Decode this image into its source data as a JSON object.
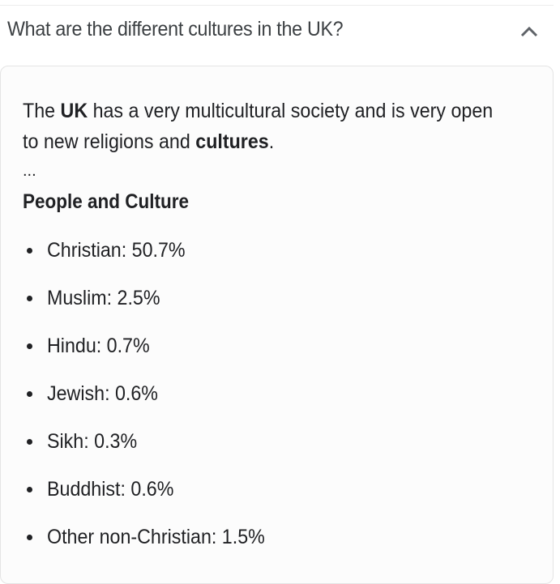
{
  "question": "What are the different cultures in the UK?",
  "expand_icon": "chevron-up-icon",
  "answer": {
    "intro_parts": [
      {
        "text": "The ",
        "bold": false
      },
      {
        "text": "UK",
        "bold": true
      },
      {
        "text": " has a very multicultural society and is very open to new religions and ",
        "bold": false
      },
      {
        "text": "cultures",
        "bold": true
      },
      {
        "text": ".",
        "bold": false
      }
    ],
    "ellipsis": "...",
    "heading": "People and Culture",
    "items": [
      "Christian: 50.7%",
      "Muslim: 2.5%",
      "Hindu: 0.7%",
      "Jewish: 0.6%",
      "Sikh: 0.3%",
      "Buddhist: 0.6%",
      "Other non-Christian: 1.5%"
    ]
  }
}
